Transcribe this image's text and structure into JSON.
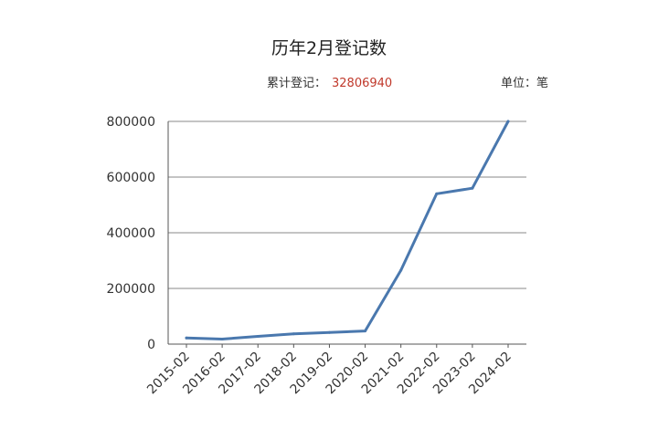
{
  "page": {
    "title": "历年2月登记数",
    "total_label": "累计登记：",
    "total_value": "32806940",
    "unit_label": "单位：笔"
  },
  "colors": {
    "line": "#4a78ae",
    "total_value": "#c0392b",
    "grid": "#888888",
    "text": "#333333"
  },
  "chart_data": {
    "type": "line",
    "title": "历年2月登记数",
    "xlabel": "",
    "ylabel": "",
    "categories": [
      "2015-02",
      "2016-02",
      "2017-02",
      "2018-02",
      "2019-02",
      "2020-02",
      "2021-02",
      "2022-02",
      "2023-02",
      "2024-02"
    ],
    "series": [
      {
        "values": [
          22000,
          18000,
          28000,
          37000,
          42000,
          47000,
          265000,
          540000,
          560000,
          800000
        ]
      }
    ],
    "ylim": [
      0,
      800000
    ],
    "yticks": [
      0,
      200000,
      400000,
      600000,
      800000
    ],
    "ytick_labels": [
      "0",
      "200000",
      "400000",
      "600000",
      "800000"
    ],
    "grid": true,
    "legend": "none"
  }
}
